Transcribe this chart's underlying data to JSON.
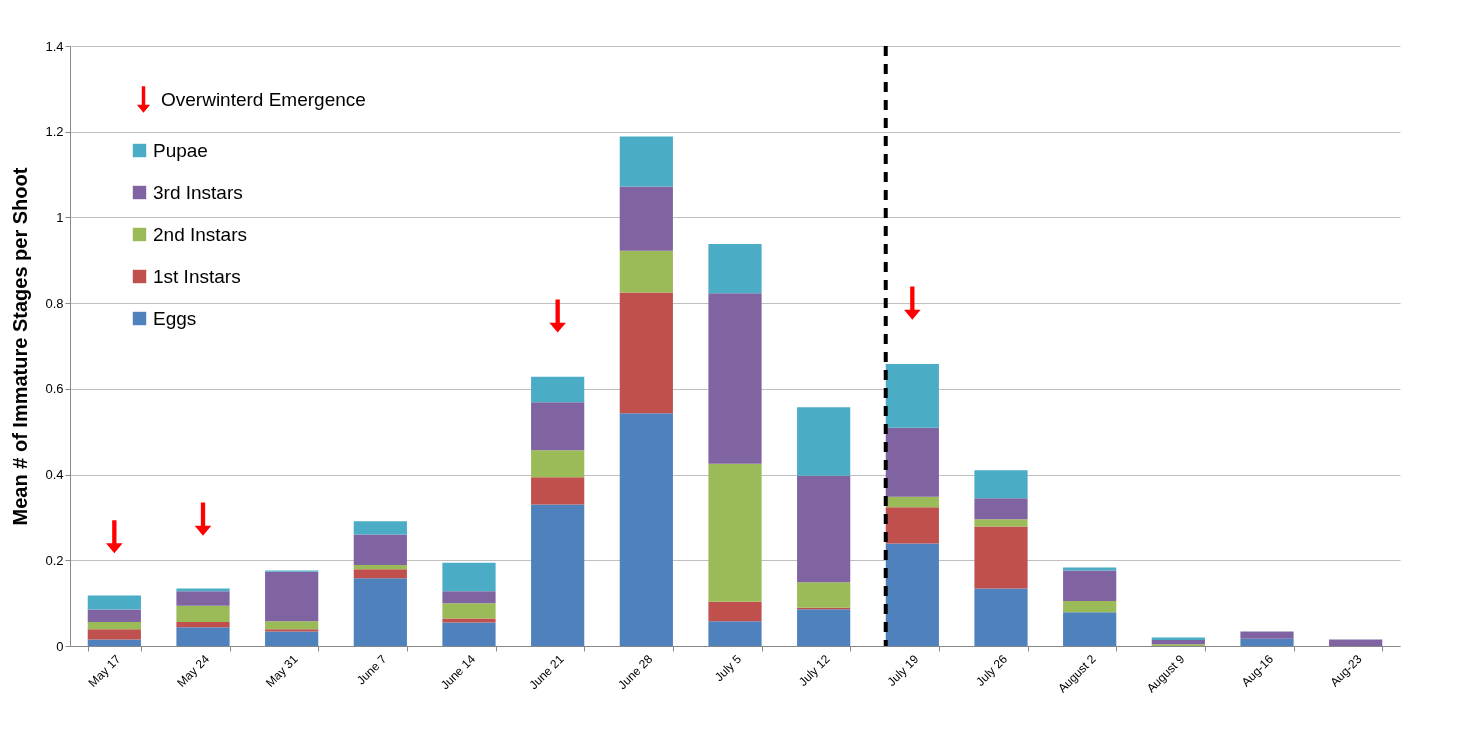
{
  "chart_data": {
    "type": "bar",
    "stacked": true,
    "ylabel": "Mean # of Immature Stages per Shoot",
    "categories": [
      "May 17",
      "May 24",
      "May 31",
      "June 7",
      "June 14",
      "June 21",
      "June 28",
      "July 5",
      "July 12",
      "July 19",
      "July 26",
      "August 2",
      "August 9",
      "Aug-16",
      "Aug-23"
    ],
    "series": [
      {
        "name": "Eggs",
        "color": "#4f81bd",
        "values": [
          0.015,
          0.044,
          0.034,
          0.158,
          0.055,
          0.33,
          0.543,
          0.058,
          0.086,
          0.239,
          0.134,
          0.079,
          0,
          0.017,
          0
        ]
      },
      {
        "name": "1st Instars",
        "color": "#c0504d",
        "values": [
          0.024,
          0.012,
          0.005,
          0.021,
          0.009,
          0.064,
          0.282,
          0.045,
          0.003,
          0.085,
          0.145,
          0,
          0,
          0,
          0
        ]
      },
      {
        "name": "2nd Instars",
        "color": "#9bbb59",
        "values": [
          0.017,
          0.038,
          0.019,
          0.01,
          0.036,
          0.063,
          0.097,
          0.322,
          0.06,
          0.024,
          0.017,
          0.026,
          0.004,
          0,
          0
        ]
      },
      {
        "name": "3rd Instars",
        "color": "#8064a2",
        "values": [
          0.029,
          0.034,
          0.115,
          0.071,
          0.028,
          0.112,
          0.15,
          0.398,
          0.248,
          0.161,
          0.049,
          0.071,
          0.01,
          0.017,
          0.015
        ]
      },
      {
        "name": "Pupae",
        "color": "#4bacc6",
        "values": [
          0.033,
          0.006,
          0.003,
          0.031,
          0.066,
          0.059,
          0.117,
          0.115,
          0.16,
          0.149,
          0.065,
          0.007,
          0.006,
          0,
          0
        ]
      },
      {
        "name": "Overwinterd Emergence",
        "type": "scatter",
        "color": "#ff0000",
        "values": [
          0.255,
          0.296,
          null,
          null,
          null,
          0.77,
          null,
          null,
          null,
          0.8,
          null,
          null,
          null,
          null,
          null
        ]
      }
    ],
    "ylim": [
      0,
      1.4
    ],
    "yticks": [
      0,
      0.2,
      0.4,
      0.6,
      0.8,
      1,
      1.2,
      1.4
    ],
    "grid": "y",
    "legend": "top left",
    "ref_lines": [
      {
        "axis": "x",
        "value": "July 19",
        "color": "#000000",
        "line_style": "dashed"
      }
    ]
  }
}
